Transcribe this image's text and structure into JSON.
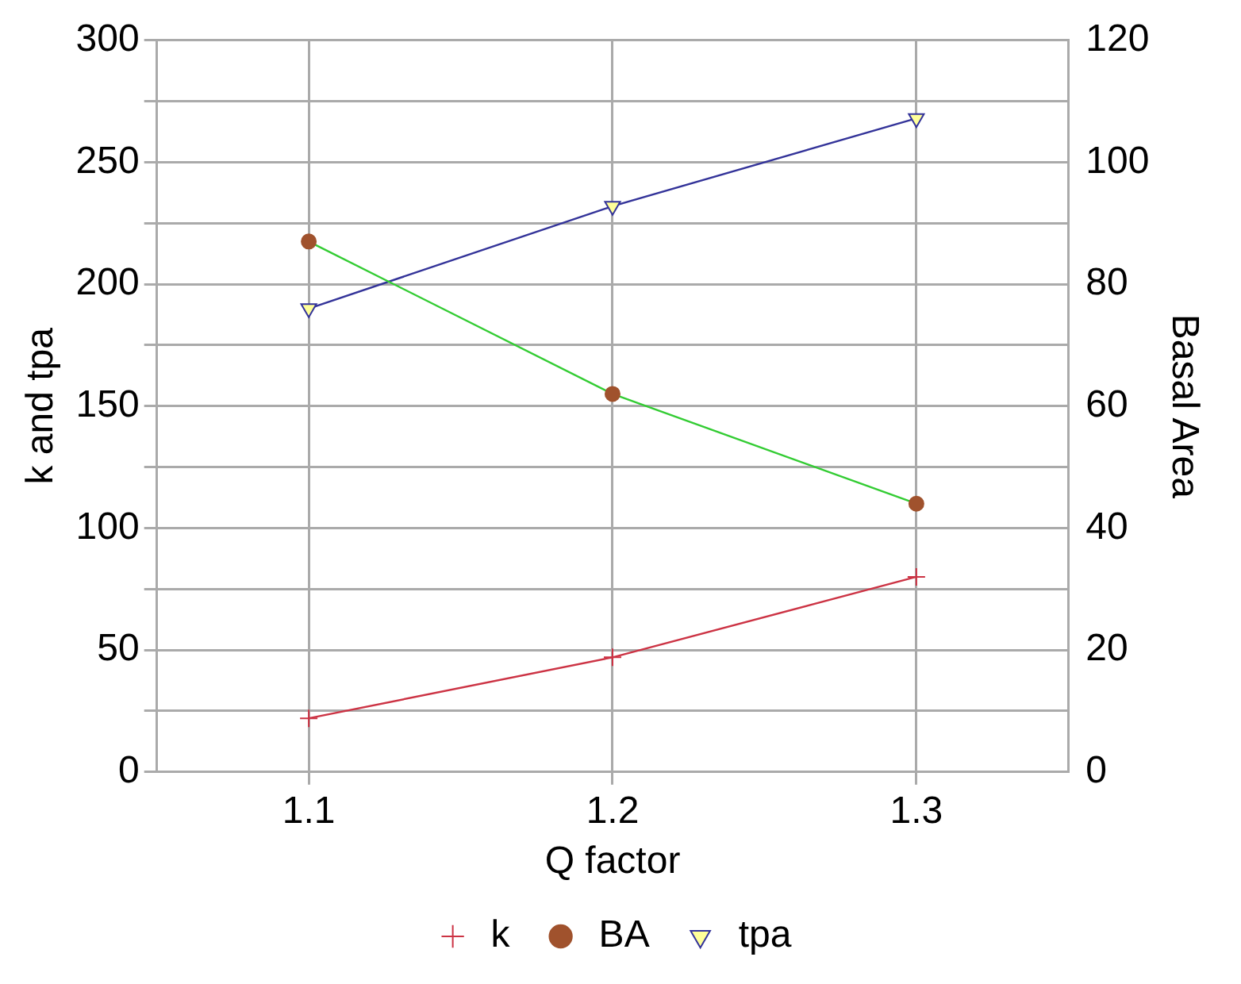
{
  "chart_data": {
    "type": "line",
    "xlabel": "Q factor",
    "ylabel": "k and tpa",
    "y2label": "Basal Area",
    "x": [
      1.1,
      1.2,
      1.3
    ],
    "xlim": [
      1.05,
      1.35
    ],
    "xticks": [
      1.1,
      1.2,
      1.3
    ],
    "ylim": [
      0,
      300
    ],
    "yticks": [
      0,
      {
        "value": 25,
        "label": null
      },
      50,
      {
        "value": 75,
        "label": null
      },
      100,
      {
        "value": 125,
        "label": null
      },
      150,
      {
        "value": 175,
        "label": null
      },
      200,
      {
        "value": 225,
        "label": null
      },
      250,
      {
        "value": 275,
        "label": null
      },
      300
    ],
    "y2lim": [
      0,
      120
    ],
    "y2ticks": [
      0,
      20,
      40,
      60,
      80,
      100,
      120
    ],
    "grid": true,
    "legend": "bottom",
    "series": [
      {
        "name": "k",
        "color": "#cc3344",
        "marker": "cross",
        "values": [
          22,
          47,
          80
        ]
      },
      {
        "name": "BA",
        "color": "#33cc33",
        "marker": "circle",
        "axis": "y2",
        "values": [
          87,
          62,
          44
        ]
      },
      {
        "name": "tpa",
        "color": "#333399",
        "marker": "triangle",
        "values": [
          190,
          232,
          268
        ]
      }
    ]
  }
}
